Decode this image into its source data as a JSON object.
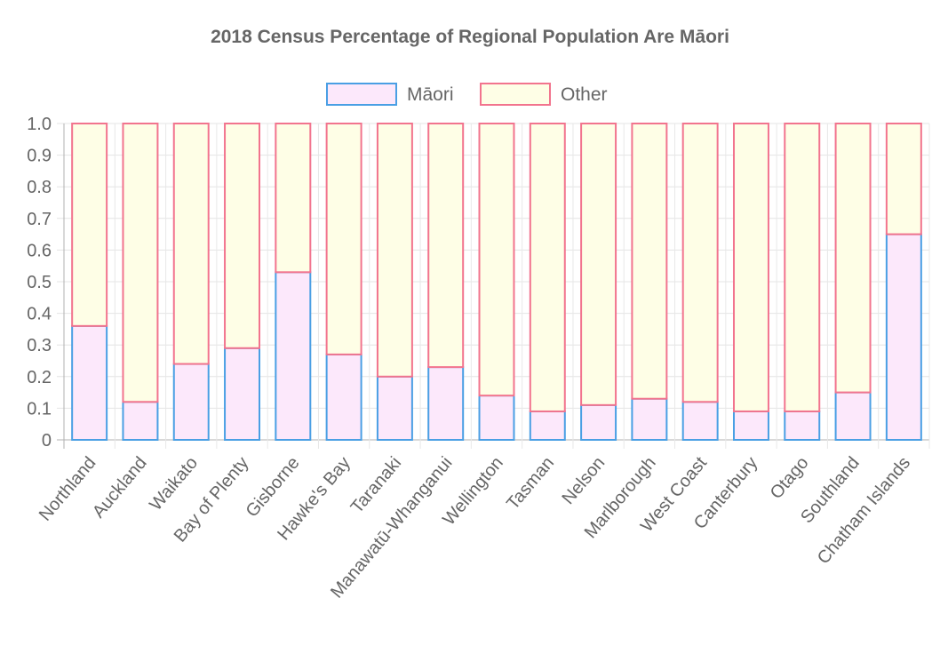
{
  "chart_data": {
    "type": "bar",
    "stacked": true,
    "title": "2018 Census Percentage of Regional Population Are Māori",
    "xlabel": "",
    "ylabel": "",
    "ylim": [
      0,
      1
    ],
    "yticks": [
      "0",
      "0.1",
      "0.2",
      "0.3",
      "0.4",
      "0.5",
      "0.6",
      "0.7",
      "0.8",
      "0.9",
      "1.0"
    ],
    "legend_position": "top",
    "categories": [
      "Northland",
      "Auckland",
      "Waikato",
      "Bay of Plenty",
      "Gisborne",
      "Hawke's Bay",
      "Taranaki",
      "Manawatū-Whanganui",
      "Wellington",
      "Tasman",
      "Nelson",
      "Marlborough",
      "West Coast",
      "Canterbury",
      "Otago",
      "Southland",
      "Chatham Islands"
    ],
    "series": [
      {
        "name": "Māori",
        "fill": "#fce8fb",
        "stroke": "#4a9fe4",
        "values": [
          0.36,
          0.12,
          0.24,
          0.29,
          0.53,
          0.27,
          0.2,
          0.23,
          0.14,
          0.09,
          0.11,
          0.13,
          0.12,
          0.09,
          0.09,
          0.15,
          0.65
        ]
      },
      {
        "name": "Other",
        "fill": "#fefee6",
        "stroke": "#f2748e",
        "values": [
          0.64,
          0.88,
          0.76,
          0.71,
          0.47,
          0.73,
          0.8,
          0.77,
          0.86,
          0.91,
          0.89,
          0.87,
          0.88,
          0.91,
          0.91,
          0.85,
          0.35
        ]
      }
    ]
  }
}
